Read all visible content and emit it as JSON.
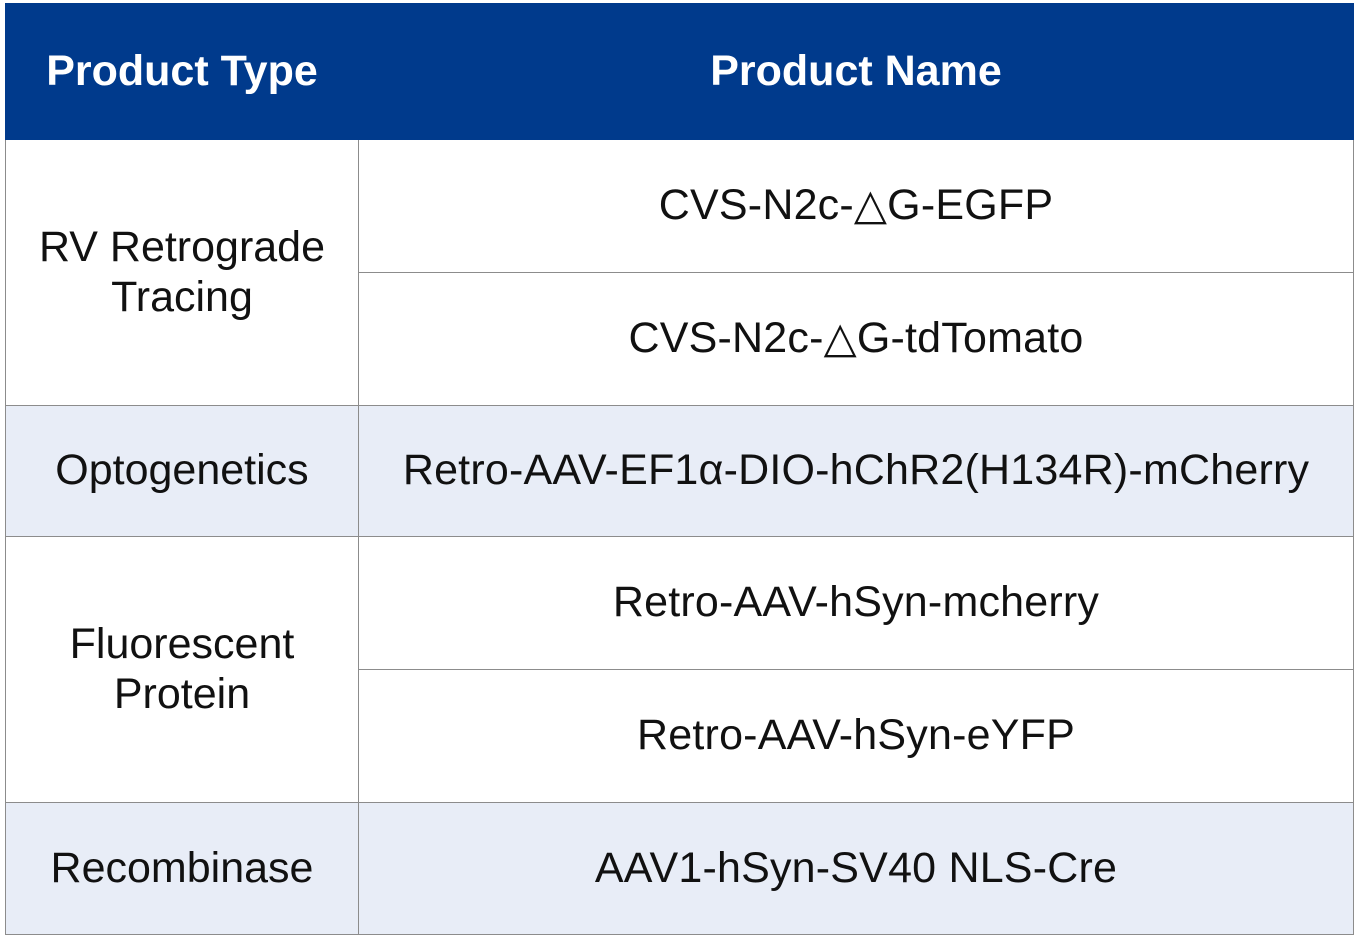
{
  "table": {
    "headers": {
      "type": "Product Type",
      "name": "Product Name"
    },
    "groups": [
      {
        "type_lines": [
          "RV Retrograde",
          "Tracing"
        ],
        "products": [
          "CVS-N2c-△G-EGFP",
          "CVS-N2c-△G-tdTomato"
        ]
      },
      {
        "type_lines": [
          "Optogenetics"
        ],
        "products": [
          "Retro-AAV-EF1α-DIO-hChR2(H134R)-mCherry"
        ]
      },
      {
        "type_lines": [
          "Fluorescent",
          "Protein"
        ],
        "products": [
          "Retro-AAV-hSyn-mcherry",
          "Retro-AAV-hSyn-eYFP"
        ]
      },
      {
        "type_lines": [
          "Recombinase"
        ],
        "products": [
          "AAV1-hSyn-SV40 NLS-Cre"
        ]
      }
    ]
  },
  "colors": {
    "header_bg": "#003a8c",
    "header_text": "#ffffff",
    "shaded_row_bg": "#e8edf7",
    "border": "#8c8c8c"
  }
}
